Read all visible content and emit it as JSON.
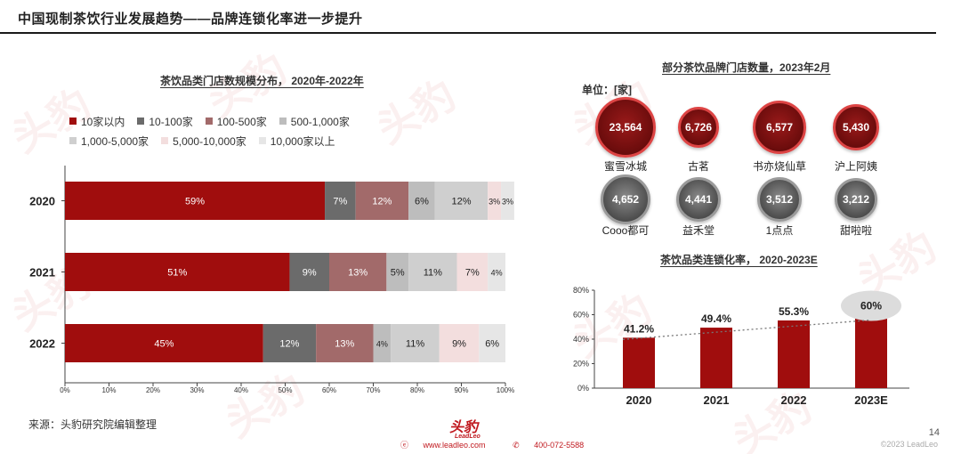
{
  "header": {
    "title": "中国现制茶饮行业发展趋势——品牌连锁化率进一步提升"
  },
  "watermark": "头豹",
  "colors": {
    "s10": "#a00d0d",
    "s100": "#6b6b6b",
    "s500": "#a26a6a",
    "s1000": "#bdbdbd",
    "s5000": "#cfcfcf",
    "s10000": "#f3dede",
    "s10000p": "#e6e6e6",
    "chain_bar": "#a00d0d"
  },
  "chart_data": [
    {
      "type": "bar",
      "orientation": "horizontal-stacked-100",
      "title": "茶饮品类门店数规模分布， 2020年-2022年",
      "categories": [
        "2020",
        "2021",
        "2022"
      ],
      "series": [
        {
          "name": "10家以内",
          "values": [
            59,
            51,
            45
          ],
          "labels": [
            "59%",
            "51%",
            "45%"
          ]
        },
        {
          "name": "10-100家",
          "values": [
            7,
            9,
            12
          ],
          "labels": [
            "7%",
            "9%",
            "12%"
          ]
        },
        {
          "name": "100-500家",
          "values": [
            12,
            13,
            13
          ],
          "labels": [
            "12%",
            "13%",
            "13%"
          ]
        },
        {
          "name": "500-1,000家",
          "values": [
            6,
            5,
            4
          ],
          "labels": [
            "6%",
            "5%",
            "4%"
          ]
        },
        {
          "name": "1,000-5,000家",
          "values": [
            12,
            11,
            11
          ],
          "labels": [
            "12%",
            "11%",
            "11%"
          ]
        },
        {
          "name": "5,000-10,000家",
          "values": [
            3,
            7,
            9
          ],
          "labels": [
            "3%",
            "7%",
            "9%"
          ]
        },
        {
          "name": "10,000家以上",
          "values": [
            3,
            4,
            6
          ],
          "labels": [
            "3%",
            "4%",
            "6%"
          ]
        }
      ],
      "xticks": [
        "0%",
        "10%",
        "20%",
        "30%",
        "40%",
        "50%",
        "60%",
        "70%",
        "80%",
        "90%",
        "100%"
      ],
      "xlim": [
        0,
        100
      ]
    },
    {
      "type": "bubble",
      "title": "部分茶饮品牌门店数量，2023年2月",
      "unit": "单位：[家]",
      "items": [
        {
          "name": "蜜雪冰城",
          "value": 23564,
          "label": "23,564",
          "tone": "red"
        },
        {
          "name": "古茗",
          "value": 6726,
          "label": "6,726",
          "tone": "red"
        },
        {
          "name": "书亦烧仙草",
          "value": 6577,
          "label": "6,577",
          "tone": "red"
        },
        {
          "name": "沪上阿姨",
          "value": 5430,
          "label": "5,430",
          "tone": "red"
        },
        {
          "name": "Cooo都可",
          "value": 4652,
          "label": "4,652",
          "tone": "grey"
        },
        {
          "name": "益禾堂",
          "value": 4441,
          "label": "4,441",
          "tone": "grey"
        },
        {
          "name": "1点点",
          "value": 3512,
          "label": "3,512",
          "tone": "grey"
        },
        {
          "name": "甜啦啦",
          "value": 3212,
          "label": "3,212",
          "tone": "grey"
        }
      ]
    },
    {
      "type": "bar",
      "title": "茶饮品类连锁化率， 2020-2023E",
      "categories": [
        "2020",
        "2021",
        "2022",
        "2023E"
      ],
      "values": [
        41.2,
        49.4,
        55.3,
        60
      ],
      "labels": [
        "41.2%",
        "49.4%",
        "55.3%",
        "60%"
      ],
      "yticks": [
        "0%",
        "20%",
        "40%",
        "60%",
        "80%"
      ],
      "ylim": [
        0,
        80
      ],
      "trendline": "dotted"
    }
  ],
  "footer": {
    "source": "来源：头豹研究院编辑整理",
    "logo": "头豹",
    "logo_sub": "LeadLeo",
    "website": "www.leadleo.com",
    "phone": "400-072-5588",
    "page": "14",
    "copyright": "©2023 LeadLeo"
  }
}
